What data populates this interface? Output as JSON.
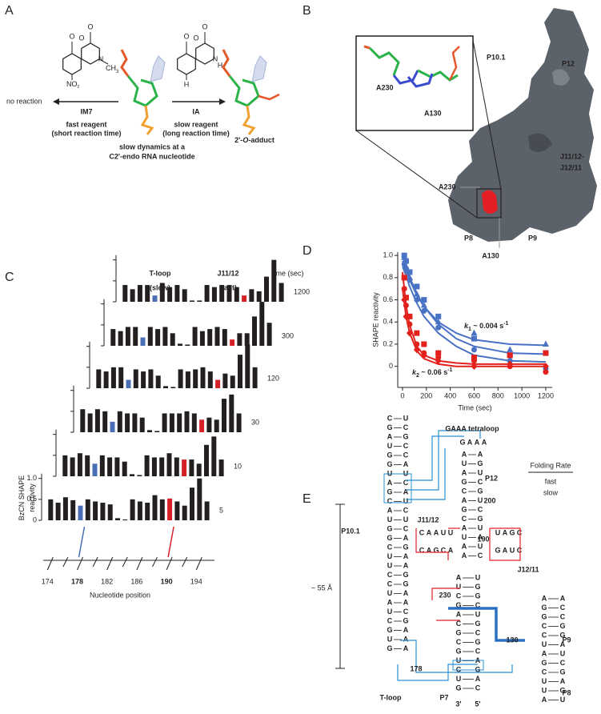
{
  "panel_labels": [
    "A",
    "B",
    "C",
    "D",
    "E"
  ],
  "panel_a": {
    "im7": {
      "name": "IM7",
      "atoms": [
        "O",
        "O",
        "O",
        "N"
      ],
      "methyl": [
        "CH",
        "3"
      ],
      "nitro": [
        "NO",
        "2"
      ],
      "desc": [
        "fast reagent",
        "(short reaction time)"
      ]
    },
    "ia": {
      "name": "IA",
      "atoms": [
        "O",
        "O",
        "O",
        "N",
        "H",
        "H"
      ],
      "desc": [
        "slow reagent",
        "(long reaction time)"
      ]
    },
    "left_result": "no reaction",
    "center_desc": [
      "slow dynamics at a",
      "C2'-endo RNA nucleotide"
    ],
    "product": [
      "2'-",
      "O",
      "-adduct"
    ]
  },
  "panel_b": {
    "inset_labels": [
      "A230",
      "A130"
    ],
    "structure_labels": [
      "P10.1",
      "P12",
      "J11/12-",
      "J12/11",
      "P8",
      "P9"
    ],
    "site_labels": [
      "A230",
      "A130"
    ],
    "site_color": "#e31e24"
  },
  "chart_data": [
    {
      "type": "bar",
      "y_label": [
        "BzCN SHAPE",
        "reactivity"
      ],
      "x_label": "Nucleotide position",
      "time_header": "time (sec)",
      "color": "#231f20",
      "x": [
        174,
        175,
        176,
        177,
        178,
        179,
        180,
        181,
        182,
        183,
        184,
        185,
        186,
        187,
        188,
        189,
        190,
        191,
        192,
        193,
        194,
        195
      ],
      "xlim": [
        173,
        196
      ],
      "xticks": [
        174,
        178,
        182,
        186,
        190,
        194
      ],
      "minor_xticks": [
        176,
        180,
        184,
        188,
        192
      ],
      "ylim": [
        0,
        1.3
      ],
      "yticks": [
        0,
        0.5,
        {
          "value": 1,
          "label": "1.0"
        }
      ],
      "highlight": [
        {
          "name": "T-loop",
          "label": "(slow)",
          "position": 178,
          "color": "#4a6fb5"
        },
        {
          "name": "J11/12",
          "label": "(fast)",
          "position": 190,
          "color": "#d62027"
        }
      ],
      "traces": [
        {
          "time": 1200,
          "values": [
            0.4,
            0.3,
            0.4,
            0.4,
            0.15,
            0.45,
            0.35,
            0.4,
            0.3,
            0.03,
            0.03,
            0.4,
            0.35,
            0.4,
            0.4,
            0.35,
            0.15,
            0.3,
            0.25,
            0.6,
            1.0,
            0.45
          ]
        },
        {
          "time": 300,
          "values": [
            0.4,
            0.35,
            0.45,
            0.45,
            0.2,
            0.45,
            0.4,
            0.45,
            0.3,
            0.05,
            0.03,
            0.45,
            0.35,
            0.4,
            0.45,
            0.4,
            0.15,
            0.3,
            0.3,
            0.7,
            1.05,
            0.55
          ]
        },
        {
          "time": 120,
          "values": [
            0.45,
            0.4,
            0.5,
            0.5,
            0.2,
            0.45,
            0.4,
            0.45,
            0.3,
            0.05,
            0.03,
            0.45,
            0.4,
            0.45,
            0.5,
            0.4,
            0.2,
            0.35,
            0.3,
            0.8,
            1.05,
            0.5
          ]
        },
        {
          "time": 30,
          "values": [
            0.55,
            0.45,
            0.55,
            0.5,
            0.25,
            0.5,
            0.45,
            0.45,
            0.35,
            0.05,
            0.03,
            0.45,
            0.45,
            0.45,
            0.5,
            0.45,
            0.3,
            0.35,
            0.3,
            0.8,
            0.9,
            0.45
          ]
        },
        {
          "time": 10,
          "values": [
            0.5,
            0.45,
            0.55,
            0.5,
            0.3,
            0.5,
            0.45,
            0.45,
            0.35,
            0.05,
            0.03,
            0.5,
            0.45,
            0.45,
            0.55,
            0.45,
            0.4,
            0.4,
            0.3,
            0.75,
            0.95,
            0.4
          ]
        },
        {
          "time": 5,
          "values": [
            0.5,
            0.42,
            0.55,
            0.48,
            0.35,
            0.5,
            0.45,
            0.42,
            0.38,
            0.05,
            0.02,
            0.5,
            0.45,
            0.42,
            0.6,
            0.5,
            0.52,
            0.45,
            0.35,
            0.78,
            1.0,
            0.45
          ]
        }
      ]
    },
    {
      "type": "scatter",
      "x_label": "Time (sec)",
      "y_label": "SHAPE reactivity",
      "xlim": [
        -40,
        1254
      ],
      "ylim": [
        -0.19,
        1.03
      ],
      "xticks": [
        0,
        200,
        400,
        600,
        800,
        1000,
        1200
      ],
      "yticks": [
        0,
        0.2,
        0.4,
        0.6,
        0.8,
        {
          "value": 1,
          "label": "1.0"
        }
      ],
      "x": [
        15,
        30,
        60,
        120,
        180,
        300,
        600,
        900,
        1200
      ],
      "series": [
        {
          "color": "#4a72c4",
          "marker": "square",
          "values": [
            1.0,
            0.95,
            0.85,
            0.72,
            0.6,
            0.45,
            0.25,
            0.1,
            0.12
          ]
        },
        {
          "color": "#4a72c4",
          "marker": "triangle",
          "values": [
            0.98,
            0.9,
            0.8,
            0.65,
            0.55,
            0.4,
            0.3,
            0.15,
            0.2
          ]
        },
        {
          "color": "#4a72c4",
          "marker": "circle",
          "values": [
            0.92,
            0.88,
            0.78,
            0.6,
            0.5,
            0.35,
            0.15,
            0.05,
            -0.02
          ]
        },
        {
          "color": "#e3211c",
          "marker": "square",
          "values": [
            0.8,
            0.62,
            0.45,
            0.3,
            0.2,
            0.12,
            0.08,
            0.1,
            0.12
          ]
        },
        {
          "color": "#e3211c",
          "marker": "diamond",
          "values": [
            0.6,
            0.45,
            0.3,
            0.15,
            0.1,
            0.05,
            0.0,
            0.02,
            0.0
          ]
        },
        {
          "color": "#e3211c",
          "marker": "circle",
          "values": [
            0.7,
            0.55,
            0.38,
            0.2,
            0.12,
            0.08,
            0.05,
            0.0,
            -0.05
          ]
        }
      ],
      "fits": {
        "x": [
          0,
          30,
          60,
          120,
          180,
          300,
          450,
          600,
          900,
          1200
        ],
        "series": [
          {
            "color": "#4a72c4",
            "values": [
              1.0,
              0.89,
              0.8,
              0.66,
              0.54,
              0.38,
              0.25,
              0.18,
              0.12,
              0.11
            ]
          },
          {
            "color": "#4a72c4",
            "values": [
              0.95,
              0.86,
              0.78,
              0.64,
              0.54,
              0.4,
              0.3,
              0.24,
              0.2,
              0.19
            ]
          },
          {
            "color": "#4a72c4",
            "values": [
              0.9,
              0.82,
              0.72,
              0.57,
              0.45,
              0.3,
              0.18,
              0.1,
              0.05,
              0.04
            ]
          },
          {
            "color": "#e3211c",
            "values": [
              0.85,
              0.55,
              0.37,
              0.18,
              0.1,
              0.05,
              0.03,
              0.02,
              0.02,
              0.02
            ]
          },
          {
            "color": "#e3211c",
            "values": [
              0.7,
              0.45,
              0.3,
              0.14,
              0.07,
              0.02,
              0.0,
              0.0,
              0.0,
              0.0
            ]
          }
        ]
      },
      "annotations": [
        {
          "k": "k",
          "sub": "1",
          "text": " ~ 0.004 s",
          "sup": "-1",
          "color": "#4a72c4"
        },
        {
          "k": "k",
          "sub": "2",
          "text": " ~ 0.06 s",
          "sup": "-1",
          "color": "#e3211c"
        }
      ]
    }
  ],
  "panel_e": {
    "tetraloop": "GAAA tetraloop",
    "legend": {
      "title": "Folding Rate",
      "entries": [
        {
          "label": "fast",
          "color": "#e31e24"
        },
        {
          "label": "slow",
          "color": "#2b8fd0"
        }
      ]
    },
    "helix_labels": [
      "P12",
      "P10.1",
      "P9",
      "P7",
      "P8"
    ],
    "junction_labels": [
      "J11/12",
      "J12/11",
      "T-loop"
    ],
    "numbers": [
      200,
      190,
      230,
      178
    ],
    "site": 130,
    "ends": [
      "3'",
      "5'"
    ],
    "distance": "~ 55 Å",
    "strands": [
      {
        "bases": [
          "C",
          "G",
          "A",
          "U",
          "G",
          "G",
          "U",
          "A",
          "G",
          "C",
          "A",
          "U",
          "G",
          "G",
          "C",
          "U",
          "U",
          "C",
          "C",
          "U",
          "A",
          "U",
          "C",
          "G",
          "U",
          "G"
        ]
      },
      {
        "bases": [
          "U",
          "C",
          "G",
          "C",
          "C",
          "A",
          "U",
          "C",
          "A",
          "U",
          "C",
          "U",
          "C",
          "A",
          "G",
          "A",
          "A",
          "G",
          "G",
          "A",
          "A",
          "C",
          "G",
          "A",
          "A",
          "A"
        ]
      },
      {
        "bases": [
          "A",
          "U",
          "A",
          "G",
          "C",
          "A",
          "G",
          "C",
          "A",
          "U",
          "A",
          "A"
        ]
      },
      {
        "bases": [
          "A",
          "G",
          "U",
          "C",
          "G",
          "U",
          "C",
          "G",
          "U",
          "A",
          "U",
          "C"
        ]
      },
      {
        "bases": [
          "A",
          "U",
          "C",
          "G",
          "A",
          "C",
          "G",
          "C",
          "G",
          "U",
          "C",
          "U",
          "G"
        ]
      },
      {
        "bases": [
          "U",
          "G",
          "G",
          "C",
          "U",
          "G",
          "C",
          "G",
          "C",
          "A",
          "G",
          "A",
          "C"
        ]
      },
      {
        "bases": [
          "A",
          "G",
          "G",
          "C",
          "C",
          "U",
          "A",
          "G",
          "C",
          "U",
          "U",
          "A"
        ]
      },
      {
        "bases": [
          "A",
          "C",
          "C",
          "G",
          "G",
          "A",
          "U",
          "C",
          "G",
          "A",
          "G",
          "U"
        ]
      },
      {
        "bases": [
          "C",
          "A",
          "A",
          "U",
          "U"
        ],
        "color": "#e31e24"
      },
      {
        "bases": [
          "C",
          "A",
          "G",
          "C",
          "A"
        ],
        "color": "#e31e24"
      },
      {
        "bases": [
          "U",
          "A",
          "G",
          "C"
        ],
        "color": "#e31e24"
      },
      {
        "bases": [
          "G",
          "A",
          "U",
          "C"
        ],
        "color": "#e31e24"
      },
      {
        "bases": [
          "G",
          "A",
          "A",
          "A"
        ],
        "color": "#2b8fd0"
      }
    ]
  }
}
